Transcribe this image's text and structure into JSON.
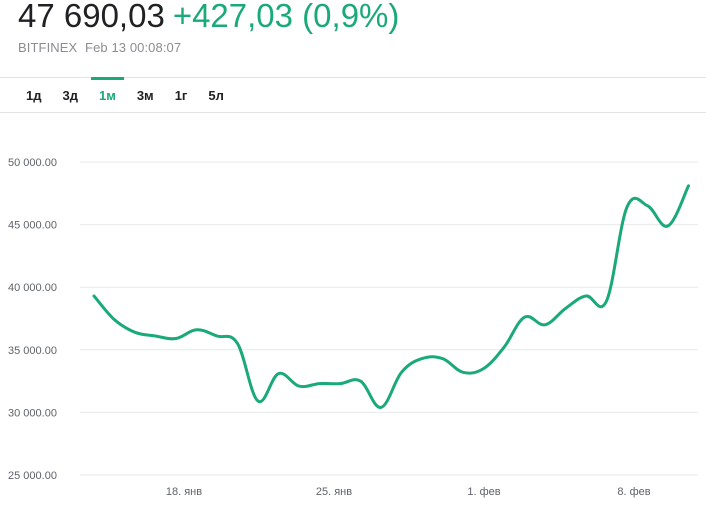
{
  "header": {
    "price": "47 690,03",
    "change": "+427,03 (0,9%)",
    "exchange": "BITFINEX",
    "timestamp": "Feb 13 00:08:07"
  },
  "tabs": [
    {
      "label": "1д",
      "active": false
    },
    {
      "label": "3д",
      "active": false
    },
    {
      "label": "1м",
      "active": true
    },
    {
      "label": "3м",
      "active": false
    },
    {
      "label": "1г",
      "active": false
    },
    {
      "label": "5л",
      "active": false
    }
  ],
  "colors": {
    "accent": "#1aa978",
    "grid": "#e8e9eb",
    "text": "#202124",
    "muted": "#8a8d91"
  },
  "chart_data": {
    "type": "line",
    "title": "",
    "xlabel": "",
    "ylabel": "",
    "ylim": [
      25000,
      50000
    ],
    "xlim": [
      0,
      40
    ],
    "yticks": [
      {
        "label": "50 000.00",
        "value": 50000
      },
      {
        "label": "45 000.00",
        "value": 45000
      },
      {
        "label": "40 000.00",
        "value": 40000
      },
      {
        "label": "35 000.00",
        "value": 35000
      },
      {
        "label": "30 000.00",
        "value": 30000
      },
      {
        "label": "25 000.00",
        "value": 25000
      }
    ],
    "xticks": [
      {
        "label": "18. янв",
        "x": 6
      },
      {
        "label": "25. янв",
        "x": 16
      },
      {
        "label": "1. фев",
        "x": 26
      },
      {
        "label": "8. фев",
        "x": 36
      }
    ],
    "grid": true,
    "series": [
      {
        "color": "#1aa978",
        "points": [
          [
            0,
            39300
          ],
          [
            1,
            37400
          ],
          [
            2,
            36400
          ],
          [
            3,
            36100
          ],
          [
            4,
            35900
          ],
          [
            5,
            36600
          ],
          [
            6,
            36100
          ],
          [
            7,
            35500
          ],
          [
            8,
            30900
          ],
          [
            9,
            33100
          ],
          [
            10,
            32100
          ],
          [
            11,
            32300
          ],
          [
            12,
            32300
          ],
          [
            13,
            32500
          ],
          [
            14,
            30400
          ],
          [
            15,
            33200
          ],
          [
            16,
            34300
          ],
          [
            17,
            34300
          ],
          [
            18,
            33200
          ],
          [
            19,
            33500
          ],
          [
            20,
            35200
          ],
          [
            21,
            37600
          ],
          [
            22,
            37000
          ],
          [
            23,
            38300
          ],
          [
            24,
            39300
          ],
          [
            25,
            38900
          ],
          [
            26,
            46400
          ],
          [
            27,
            46500
          ],
          [
            28,
            44900
          ],
          [
            29,
            48100
          ]
        ]
      }
    ]
  }
}
